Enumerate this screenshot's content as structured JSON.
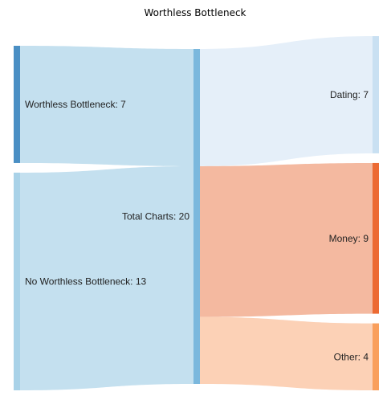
{
  "chart_data": {
    "type": "sankey",
    "title": "Worthless Bottleneck",
    "nodes": [
      {
        "id": "wb",
        "label": "Worthless Bottleneck: 7",
        "value": 7,
        "column": 0,
        "color": "#4a8fc4"
      },
      {
        "id": "nwb",
        "label": "No Worthless Bottleneck: 13",
        "value": 13,
        "column": 0,
        "color": "#a9d2e8"
      },
      {
        "id": "total",
        "label": "Total Charts: 20",
        "value": 20,
        "column": 1,
        "color": "#7bb8dd"
      },
      {
        "id": "dating",
        "label": "Dating: 7",
        "value": 7,
        "column": 2,
        "color": "#c9e0f2"
      },
      {
        "id": "money",
        "label": "Money: 9",
        "value": 9,
        "column": 2,
        "color": "#ec6a33"
      },
      {
        "id": "other",
        "label": "Other: 4",
        "value": 4,
        "column": 2,
        "color": "#f99f5c"
      }
    ],
    "links": [
      {
        "source": "wb",
        "target": "total",
        "value": 7,
        "color": "#c4e0ef"
      },
      {
        "source": "nwb",
        "target": "total",
        "value": 13,
        "color": "#c4e0ef"
      },
      {
        "source": "total",
        "target": "dating",
        "value": 7,
        "color": "#e5eff9"
      },
      {
        "source": "total",
        "target": "money",
        "value": 9,
        "color": "#f4b9a0"
      },
      {
        "source": "total",
        "target": "other",
        "value": 4,
        "color": "#fcd1b6"
      }
    ]
  }
}
